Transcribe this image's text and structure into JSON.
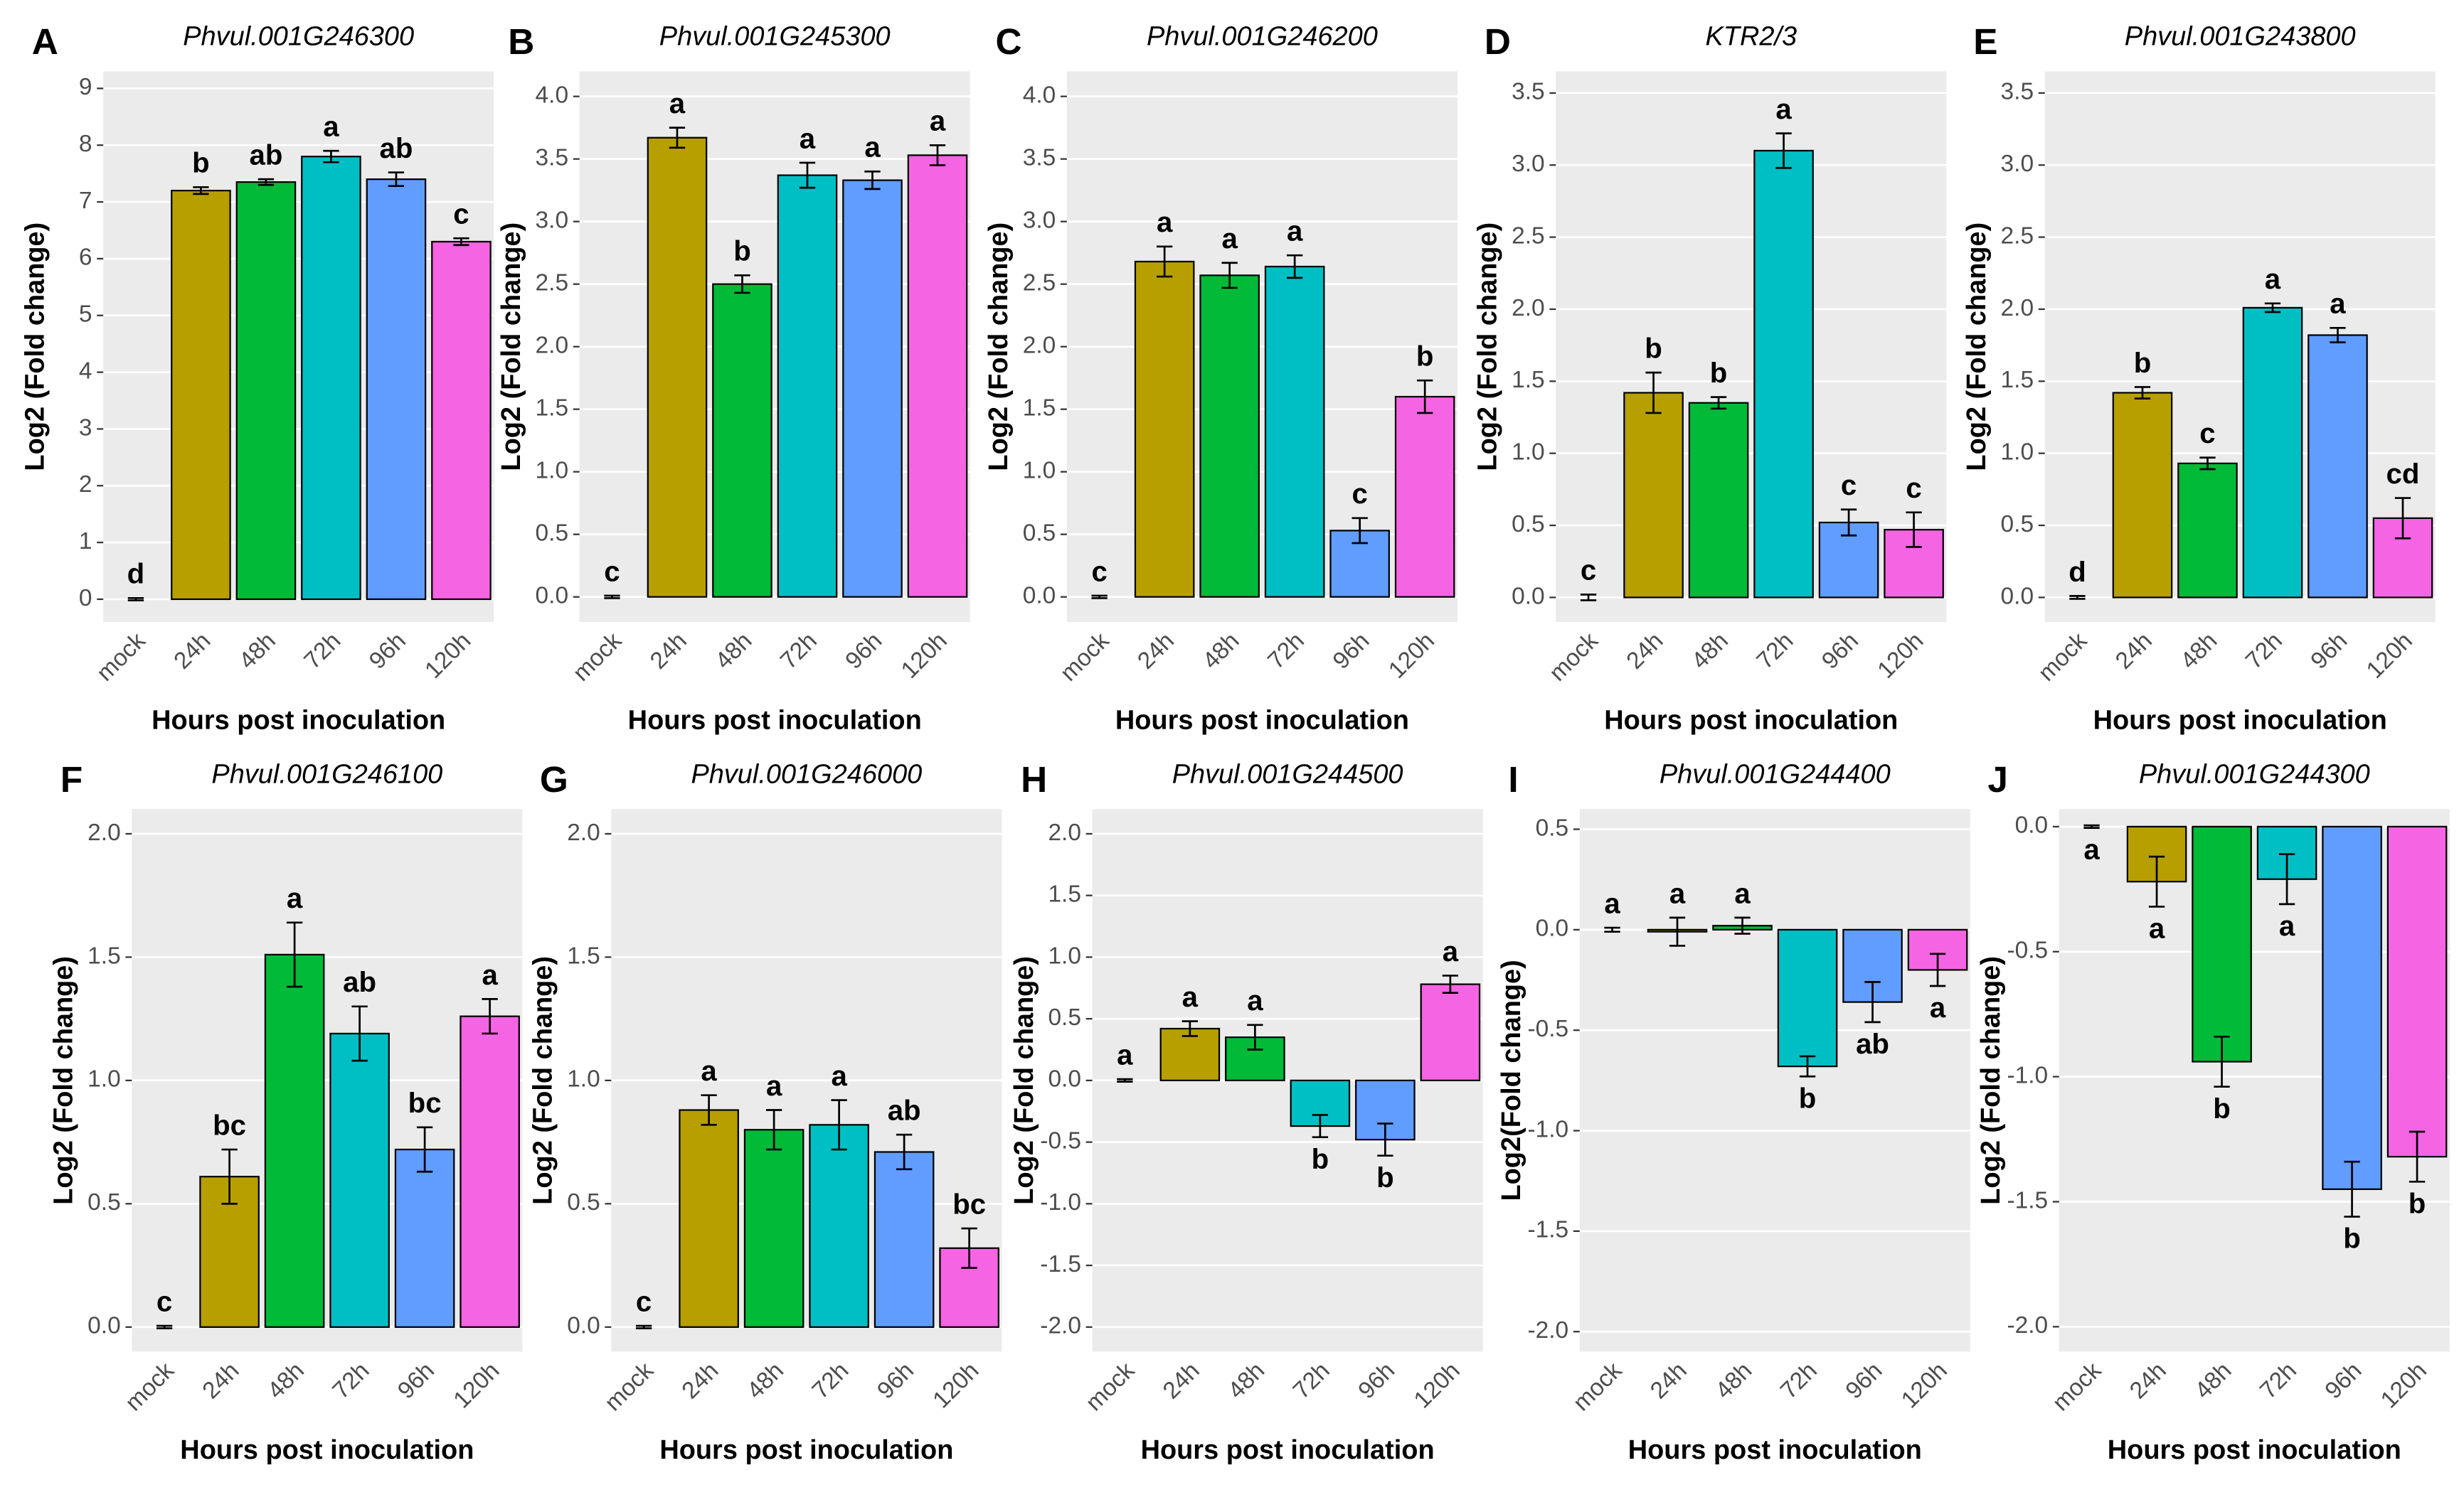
{
  "chart_data": [
    {
      "type": "bar",
      "panel": "A",
      "title": "Phvul.001G246300",
      "ylabel": "Log2 (Fold change)",
      "xlabel": "Hours post inoculation",
      "categories": [
        "mock",
        "24h",
        "48h",
        "72h",
        "96h",
        "120h"
      ],
      "values": [
        0,
        7.2,
        7.35,
        7.8,
        7.4,
        6.3
      ],
      "errors": [
        0.02,
        0.06,
        0.05,
        0.1,
        0.12,
        0.06
      ],
      "letters": [
        "d",
        "b",
        "ab",
        "a",
        "ab",
        "c"
      ],
      "colors": [
        "#F8766D",
        "#B79F00",
        "#00BA38",
        "#00BFC4",
        "#619CFF",
        "#F564E3"
      ],
      "ylim": [
        -0.4,
        9.3
      ],
      "yticks": [
        0,
        1,
        2,
        3,
        4,
        5,
        6,
        7,
        8,
        9
      ]
    },
    {
      "type": "bar",
      "panel": "B",
      "title": "Phvul.001G245300",
      "ylabel": "Log2 (Fold change)",
      "xlabel": "Hours post inoculation",
      "categories": [
        "mock",
        "24h",
        "48h",
        "72h",
        "96h",
        "120h"
      ],
      "values": [
        0,
        3.67,
        2.5,
        3.37,
        3.33,
        3.53
      ],
      "errors": [
        0.01,
        0.08,
        0.07,
        0.1,
        0.07,
        0.08
      ],
      "letters": [
        "c",
        "a",
        "b",
        "a",
        "a",
        "a"
      ],
      "colors": [
        "#F8766D",
        "#B79F00",
        "#00BA38",
        "#00BFC4",
        "#619CFF",
        "#F564E3"
      ],
      "ylim": [
        -0.2,
        4.2
      ],
      "yticks": [
        {
          "value": 0,
          "label": "0.0"
        },
        0.5,
        {
          "value": 1,
          "label": "1.0"
        },
        1.5,
        {
          "value": 2,
          "label": "2.0"
        },
        2.5,
        {
          "value": 3,
          "label": "3.0"
        },
        3.5,
        {
          "value": 4,
          "label": "4.0"
        }
      ]
    },
    {
      "type": "bar",
      "panel": "C",
      "title": "Phvul.001G246200",
      "ylabel": "Log2 (Fold change)",
      "xlabel": "Hours post inoculation",
      "categories": [
        "mock",
        "24h",
        "48h",
        "72h",
        "96h",
        "120h"
      ],
      "values": [
        0,
        2.68,
        2.57,
        2.64,
        0.53,
        1.6
      ],
      "errors": [
        0.01,
        0.12,
        0.1,
        0.09,
        0.1,
        0.13
      ],
      "letters": [
        "c",
        "a",
        "a",
        "a",
        "c",
        "b"
      ],
      "colors": [
        "#F8766D",
        "#B79F00",
        "#00BA38",
        "#00BFC4",
        "#619CFF",
        "#F564E3"
      ],
      "ylim": [
        -0.2,
        4.2
      ],
      "yticks": [
        {
          "value": 0,
          "label": "0.0"
        },
        0.5,
        {
          "value": 1,
          "label": "1.0"
        },
        1.5,
        {
          "value": 2,
          "label": "2.0"
        },
        2.5,
        {
          "value": 3,
          "label": "3.0"
        },
        3.5,
        {
          "value": 4,
          "label": "4.0"
        }
      ]
    },
    {
      "type": "bar",
      "panel": "D",
      "title": "KTR2/3",
      "ylabel": "Log2 (Fold change)",
      "xlabel": "Hours post inoculation",
      "categories": [
        "mock",
        "24h",
        "48h",
        "72h",
        "96h",
        "120h"
      ],
      "values": [
        0,
        1.42,
        1.35,
        3.1,
        0.52,
        0.47
      ],
      "errors": [
        0.02,
        0.14,
        0.04,
        0.12,
        0.09,
        0.12
      ],
      "letters": [
        "c",
        "b",
        "b",
        "a",
        "c",
        "c"
      ],
      "colors": [
        "#F8766D",
        "#B79F00",
        "#00BA38",
        "#00BFC4",
        "#619CFF",
        "#F564E3"
      ],
      "ylim": [
        -0.17,
        3.65
      ],
      "yticks": [
        {
          "value": 0,
          "label": "0.0"
        },
        0.5,
        {
          "value": 1,
          "label": "1.0"
        },
        1.5,
        {
          "value": 2,
          "label": "2.0"
        },
        2.5,
        {
          "value": 3,
          "label": "3.0"
        },
        3.5
      ]
    },
    {
      "type": "bar",
      "panel": "E",
      "title": "Phvul.001G243800",
      "ylabel": "Log2 (Fold change)",
      "xlabel": "Hours post inoculation",
      "categories": [
        "mock",
        "24h",
        "48h",
        "72h",
        "96h",
        "120h"
      ],
      "values": [
        0,
        1.42,
        0.93,
        2.01,
        1.82,
        0.55
      ],
      "errors": [
        0.01,
        0.04,
        0.04,
        0.03,
        0.05,
        0.14
      ],
      "letters": [
        "d",
        "b",
        "c",
        "a",
        "a",
        "cd"
      ],
      "colors": [
        "#F8766D",
        "#B79F00",
        "#00BA38",
        "#00BFC4",
        "#619CFF",
        "#F564E3"
      ],
      "ylim": [
        -0.17,
        3.65
      ],
      "yticks": [
        {
          "value": 0,
          "label": "0.0"
        },
        0.5,
        {
          "value": 1,
          "label": "1.0"
        },
        1.5,
        {
          "value": 2,
          "label": "2.0"
        },
        2.5,
        {
          "value": 3,
          "label": "3.0"
        },
        3.5
      ]
    },
    {
      "type": "bar",
      "panel": "F",
      "title": "Phvul.001G246100",
      "ylabel": "Log2 (Fold change)",
      "xlabel": "Hours post inoculation",
      "categories": [
        "mock",
        "24h",
        "48h",
        "72h",
        "96h",
        "120h"
      ],
      "values": [
        0,
        0.61,
        1.51,
        1.19,
        0.72,
        1.26
      ],
      "errors": [
        0.005,
        0.11,
        0.13,
        0.11,
        0.09,
        0.07
      ],
      "letters": [
        "c",
        "bc",
        "a",
        "ab",
        "bc",
        "a"
      ],
      "colors": [
        "#F8766D",
        "#B79F00",
        "#00BA38",
        "#00BFC4",
        "#619CFF",
        "#F564E3"
      ],
      "ylim": [
        -0.1,
        2.1
      ],
      "yticks": [
        {
          "value": 0,
          "label": "0.0"
        },
        0.5,
        {
          "value": 1,
          "label": "1.0"
        },
        1.5,
        {
          "value": 2,
          "label": "2.0"
        }
      ]
    },
    {
      "type": "bar",
      "panel": "G",
      "title": "Phvul.001G246000",
      "ylabel": "Log2 (Fold change)",
      "xlabel": "Hours post inoculation",
      "categories": [
        "mock",
        "24h",
        "48h",
        "72h",
        "96h",
        "120h"
      ],
      "values": [
        0,
        0.88,
        0.8,
        0.82,
        0.71,
        0.32
      ],
      "errors": [
        0.005,
        0.06,
        0.08,
        0.1,
        0.07,
        0.08
      ],
      "letters": [
        "c",
        "a",
        "a",
        "a",
        "ab",
        "bc"
      ],
      "colors": [
        "#F8766D",
        "#B79F00",
        "#00BA38",
        "#00BFC4",
        "#619CFF",
        "#F564E3"
      ],
      "ylim": [
        -0.1,
        2.1
      ],
      "yticks": [
        {
          "value": 0,
          "label": "0.0"
        },
        0.5,
        {
          "value": 1,
          "label": "1.0"
        },
        1.5,
        {
          "value": 2,
          "label": "2.0"
        }
      ]
    },
    {
      "type": "bar",
      "panel": "H",
      "title": "Phvul.001G244500",
      "ylabel": "Log2 (Fold change)",
      "xlabel": "Hours post inoculation",
      "categories": [
        "mock",
        "24h",
        "48h",
        "72h",
        "96h",
        "120h"
      ],
      "values": [
        0,
        0.42,
        0.35,
        -0.37,
        -0.48,
        0.78
      ],
      "errors": [
        0.01,
        0.06,
        0.1,
        0.09,
        0.13,
        0.07
      ],
      "letters": [
        "a",
        "a",
        "a",
        "b",
        "b",
        "a"
      ],
      "colors": [
        "#F8766D",
        "#B79F00",
        "#00BA38",
        "#00BFC4",
        "#619CFF",
        "#F564E3"
      ],
      "ylim": [
        -2.2,
        2.2
      ],
      "yticks": [
        {
          "value": -2,
          "label": "-2.0"
        },
        -1.5,
        {
          "value": -1,
          "label": "-1.0"
        },
        -0.5,
        {
          "value": 0,
          "label": "0.0"
        },
        0.5,
        {
          "value": 1,
          "label": "1.0"
        },
        1.5,
        {
          "value": 2,
          "label": "2.0"
        }
      ]
    },
    {
      "type": "bar",
      "panel": "I",
      "title": "Phvul.001G244400",
      "ylabel": "Log2(Fold change)",
      "xlabel": "Hours post inoculation",
      "categories": [
        "mock",
        "24h",
        "48h",
        "72h",
        "96h",
        "120h"
      ],
      "values": [
        0,
        -0.01,
        0.02,
        -0.68,
        -0.36,
        -0.2
      ],
      "errors": [
        0.01,
        0.07,
        0.04,
        0.05,
        0.1,
        0.08
      ],
      "letters": [
        "a",
        "a",
        "a",
        "b",
        "ab",
        "a"
      ],
      "colors": [
        "#F8766D",
        "#B79F00",
        "#00BA38",
        "#00BFC4",
        "#619CFF",
        "#F564E3"
      ],
      "ylim": [
        -2.1,
        0.6
      ],
      "yticks": [
        {
          "value": -2,
          "label": "-2.0"
        },
        -1.5,
        {
          "value": -1,
          "label": "-1.0"
        },
        -0.5,
        {
          "value": 0,
          "label": "0.0"
        },
        0.5
      ]
    },
    {
      "type": "bar",
      "panel": "J",
      "title": "Phvul.001G244300",
      "ylabel": "Log2 (Fold change)",
      "xlabel": "Hours post inoculation",
      "categories": [
        "mock",
        "24h",
        "48h",
        "72h",
        "96h",
        "120h"
      ],
      "values": [
        0,
        -0.22,
        -0.94,
        -0.21,
        -1.45,
        -1.32
      ],
      "errors": [
        0.005,
        0.1,
        0.1,
        0.1,
        0.11,
        0.1
      ],
      "letters": [
        "a",
        "a",
        "b",
        "a",
        "b",
        "b"
      ],
      "colors": [
        "#F8766D",
        "#B79F00",
        "#00BA38",
        "#00BFC4",
        "#619CFF",
        "#F564E3"
      ],
      "ylim": [
        -2.1,
        0.07
      ],
      "yticks": [
        {
          "value": -2,
          "label": "-2.0"
        },
        -1.5,
        {
          "value": -1,
          "label": "-1.0"
        },
        -0.5,
        {
          "value": 0,
          "label": "0.0"
        }
      ]
    }
  ]
}
